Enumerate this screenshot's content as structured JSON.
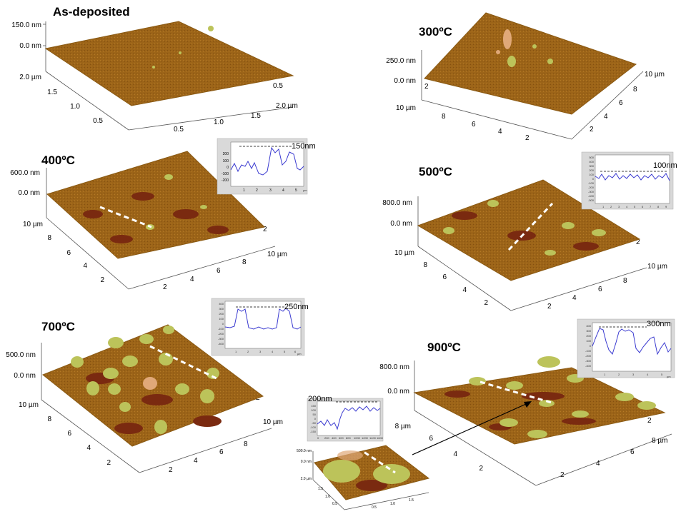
{
  "colors": {
    "surface": "#9c6418",
    "surface_light": "#b57a26",
    "dark_patch": "#7a2a10",
    "island": "#bcc35a",
    "island_core": "#e0a878",
    "profile_line": "#3a3ad0",
    "inset_bg": "#d9d9d9"
  },
  "panels": [
    {
      "title": "As-deposited",
      "z_ticks": [
        "150.0 nm",
        "0.0 nm"
      ],
      "y_ticks": [
        "2.0 µm",
        "1.5",
        "1.0",
        "0.5"
      ],
      "x_ticks": [
        "0.5",
        "1.0",
        "1.5",
        "2.0 µm"
      ],
      "r_ticks": [
        "0.5"
      ]
    },
    {
      "title": "300ºC",
      "z_ticks": [
        "250.0 nm",
        "0.0 nm"
      ],
      "y_ticks": [
        "2",
        "10 µm",
        "8",
        "6",
        "4",
        "2"
      ],
      "x_ticks": [
        "10 µm",
        "8",
        "6",
        "4",
        "2"
      ]
    },
    {
      "title": "400ºC",
      "z_ticks": [
        "600.0 nm",
        "0.0 nm"
      ],
      "y_ticks": [
        "10 µm",
        "8",
        "6",
        "4",
        "2"
      ],
      "x_ticks": [
        "2",
        "4",
        "6",
        "8",
        "10 µm"
      ],
      "r_ticks": [
        "2"
      ],
      "profile": {
        "height": "150nm",
        "y_ticks": [
          "200",
          "100",
          "0",
          "-100",
          "-200"
        ],
        "x_ticks": [
          "1",
          "2",
          "3",
          "4",
          "5"
        ],
        "x_unit": "µm"
      }
    },
    {
      "title": "500ºC",
      "z_ticks": [
        "800.0 nm",
        "0.0 nm"
      ],
      "y_ticks": [
        "10 µm",
        "8",
        "6",
        "4",
        "2"
      ],
      "x_ticks": [
        "2",
        "4",
        "6",
        "8",
        "10 µm"
      ],
      "r_ticks": [
        "2"
      ],
      "profile": {
        "height": "100nm",
        "y_ticks": [
          "500",
          "400",
          "300",
          "200",
          "100",
          "0",
          "-100",
          "-200",
          "-300",
          "-400",
          "-500"
        ],
        "x_ticks": [
          "1",
          "2",
          "3",
          "4",
          "5",
          "6",
          "7",
          "8",
          "9"
        ],
        "x_unit": "µm"
      }
    },
    {
      "title": "700ºC",
      "z_ticks": [
        "500.0 nm",
        "0.0 nm"
      ],
      "y_ticks": [
        "10 µm",
        "8",
        "6",
        "4",
        "2"
      ],
      "x_ticks": [
        "2",
        "4",
        "6",
        "8",
        "10 µm"
      ],
      "r_ticks": [
        "2"
      ],
      "profile": {
        "height": "250nm",
        "y_ticks": [
          "400",
          "300",
          "200",
          "100",
          "0",
          "-100",
          "-200",
          "-300",
          "-400"
        ],
        "x_ticks": [
          "1",
          "2",
          "3",
          "4",
          "5",
          "6"
        ],
        "x_unit": "µm"
      }
    },
    {
      "title": "900ºC",
      "z_ticks": [
        "800.0 nm",
        "0.0 nm"
      ],
      "y_ticks": [
        "8 µm",
        "6",
        "4",
        "2"
      ],
      "x_ticks": [
        "2",
        "4",
        "6",
        "8 µm"
      ],
      "r_ticks": [
        "2"
      ],
      "profile": {
        "height": "300nm",
        "y_ticks": [
          "400",
          "300",
          "200",
          "100",
          "0",
          "-100",
          "-200",
          "-300",
          "-400"
        ],
        "x_ticks": [
          "1",
          "2",
          "3",
          "4",
          "5"
        ],
        "x_unit": "µm"
      },
      "zoom": {
        "z_ticks": [
          "500.0 nm",
          "0.0 nm"
        ],
        "y_ticks": [
          "2.0 µm",
          "1.5",
          "1.0",
          "0.5"
        ],
        "x_ticks": [
          "0.5",
          "1.0",
          "1.5"
        ],
        "profile": {
          "height": "200nm",
          "y_ticks": [
            "150",
            "100",
            "50",
            "0",
            "-50",
            "-100",
            "-150"
          ],
          "x_ticks": [
            "0",
            "200",
            "400",
            "600",
            "800",
            "1000",
            "1200",
            "1400",
            "1600"
          ]
        }
      }
    }
  ]
}
